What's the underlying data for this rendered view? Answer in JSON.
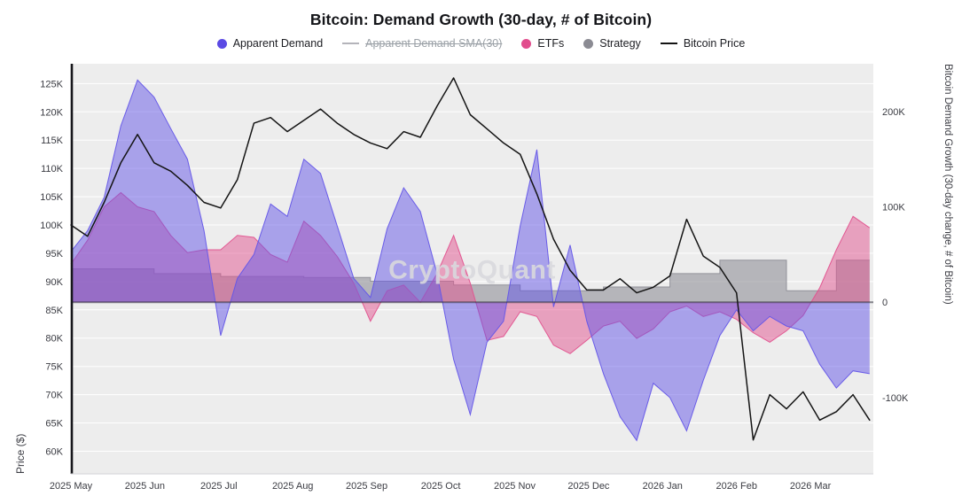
{
  "title": "Bitcoin: Demand Growth (30-day, # of Bitcoin)",
  "watermark": "CryptoQuant",
  "legend": [
    {
      "label": "Apparent Demand",
      "color": "#5b4ae4",
      "type": "dot",
      "disabled": false
    },
    {
      "label": "Apparent Demand SMA(30)",
      "color": "#b4b4ba",
      "type": "line",
      "disabled": true
    },
    {
      "label": "ETFs",
      "color": "#e14d8d",
      "type": "dot",
      "disabled": false
    },
    {
      "label": "Strategy",
      "color": "#8b8b93",
      "type": "dot",
      "disabled": false
    },
    {
      "label": "Bitcoin Price",
      "color": "#141414",
      "type": "line",
      "disabled": false
    }
  ],
  "chart_data": {
    "type": "area",
    "title": "Bitcoin: Demand Growth (30-day, # of Bitcoin)",
    "plot_background": "#ededed",
    "grid_color": "#ffffff",
    "zero_line": true,
    "x": {
      "min": 0,
      "max": 10.85,
      "tick_positions": [
        0,
        1,
        2,
        3,
        4,
        5,
        6,
        7,
        8,
        9,
        10
      ],
      "tick_labels": [
        "2025 May",
        "2025 Jun",
        "2025 Jul",
        "2025 Aug",
        "2025 Sep",
        "2025 Oct",
        "2025 Nov",
        "2025 Dec",
        "2026 Jan",
        "2026 Feb",
        "2026 Mar"
      ]
    },
    "left_axis": {
      "label": "Price ($)",
      "min": 56000,
      "max": 128500,
      "tick_values": [
        60000,
        65000,
        70000,
        75000,
        80000,
        85000,
        90000,
        95000,
        100000,
        105000,
        110000,
        115000,
        120000,
        125000
      ],
      "tick_labels": [
        "60K",
        "65K",
        "70K",
        "75K",
        "80K",
        "85K",
        "90K",
        "95K",
        "100K",
        "105K",
        "110K",
        "115K",
        "120K",
        "125K"
      ]
    },
    "right_axis": {
      "label": "Bitcoin Demand Growth (30-day change, # of Bitcoin)",
      "min": -180000,
      "max": 250000,
      "tick_values": [
        -100000,
        0,
        100000,
        200000
      ],
      "tick_labels": [
        "-100K",
        "0",
        "100K",
        "200K"
      ]
    },
    "t": [
      0,
      0.225,
      0.45,
      0.675,
      0.9,
      1.125,
      1.35,
      1.575,
      1.8,
      2.025,
      2.25,
      2.475,
      2.7,
      2.925,
      3.15,
      3.375,
      3.6,
      3.825,
      4.05,
      4.275,
      4.5,
      4.725,
      4.95,
      5.175,
      5.4,
      5.625,
      5.85,
      6.075,
      6.3,
      6.525,
      6.75,
      6.975,
      7.2,
      7.425,
      7.65,
      7.875,
      8.1,
      8.325,
      8.55,
      8.775,
      9,
      9.225,
      9.45,
      9.675,
      9.9,
      10.125,
      10.35,
      10.575,
      10.8
    ],
    "series": [
      {
        "name": "Strategy",
        "axis": "right",
        "kind": "area",
        "step": true,
        "color": "#8f8f98",
        "fill_opacity": 0.6,
        "values": [
          35000,
          35000,
          35000,
          35000,
          35000,
          30000,
          30000,
          30000,
          30000,
          27000,
          27000,
          27000,
          27000,
          27000,
          26000,
          26000,
          26000,
          26000,
          22000,
          22000,
          22000,
          22000,
          22000,
          18000,
          18000,
          18000,
          18000,
          12000,
          12000,
          12000,
          12000,
          12000,
          16000,
          16000,
          16000,
          16000,
          30000,
          30000,
          30000,
          44000,
          44000,
          44000,
          44000,
          12000,
          12000,
          12000,
          44000,
          44000,
          44000
        ]
      },
      {
        "name": "ETFs",
        "axis": "right",
        "kind": "area",
        "step": false,
        "color": "#e2538f",
        "fill_opacity": 0.5,
        "values": [
          40000,
          65000,
          100000,
          115000,
          100000,
          95000,
          70000,
          52000,
          55000,
          55000,
          70000,
          68000,
          50000,
          42000,
          85000,
          70000,
          48000,
          20000,
          -20000,
          12000,
          18000,
          0,
          30000,
          70000,
          20000,
          -40000,
          -36000,
          -10000,
          -15000,
          -45000,
          -54000,
          -40000,
          -25000,
          -20000,
          -38000,
          -28000,
          -10000,
          -4000,
          -15000,
          -10000,
          -18000,
          -32000,
          -42000,
          -30000,
          -14000,
          15000,
          55000,
          90000,
          78000
        ]
      },
      {
        "name": "Apparent Demand",
        "axis": "right",
        "kind": "area",
        "step": false,
        "color": "#6456e8",
        "fill_opacity": 0.5,
        "values": [
          53000,
          75000,
          110000,
          185000,
          233000,
          215000,
          182000,
          150000,
          75000,
          -35000,
          25000,
          50000,
          103000,
          90000,
          150000,
          135000,
          80000,
          25000,
          5000,
          77000,
          120000,
          95000,
          30000,
          -60000,
          -118000,
          -42000,
          -20000,
          80000,
          160000,
          -5000,
          60000,
          -20000,
          -75000,
          -120000,
          -145000,
          -85000,
          -100000,
          -135000,
          -82000,
          -35000,
          -8000,
          -30000,
          -15000,
          -25000,
          -30000,
          -65000,
          -90000,
          -72000,
          -75000
        ]
      },
      {
        "name": "Bitcoin Price",
        "axis": "left",
        "kind": "line",
        "color": "#141414",
        "values": [
          100000,
          98000,
          104000,
          111000,
          116000,
          111000,
          109500,
          107000,
          104000,
          103000,
          108000,
          118000,
          119000,
          116500,
          118500,
          120500,
          118000,
          116000,
          114500,
          113500,
          116500,
          115500,
          121000,
          126000,
          119500,
          117000,
          114500,
          112500,
          105500,
          97500,
          92000,
          88500,
          88500,
          90500,
          88000,
          89000,
          91000,
          101000,
          94500,
          92500,
          88000,
          62000,
          70000,
          67500,
          70500,
          65500,
          67000,
          70000,
          65500
        ]
      }
    ]
  }
}
